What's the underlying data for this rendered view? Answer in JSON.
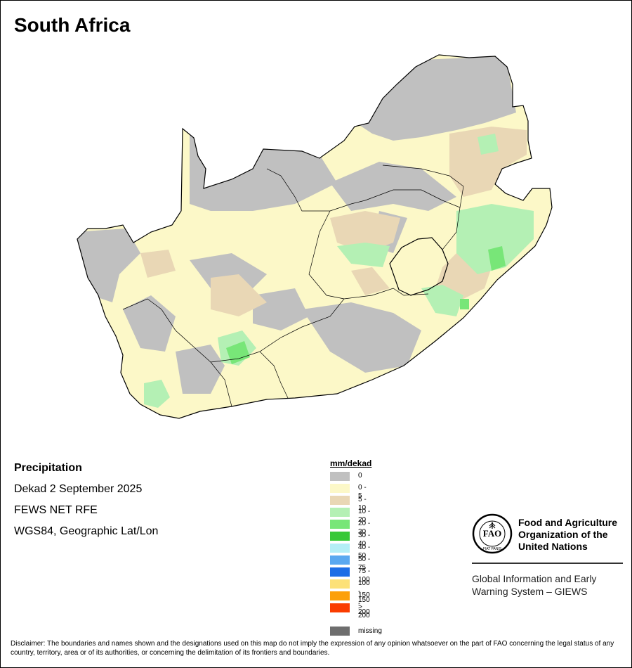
{
  "title": "South Africa",
  "info": {
    "variable": "Precipitation",
    "period": "Dekad 2 September 2025",
    "source": "FEWS NET RFE",
    "projection": "WGS84, Geographic Lat/Lon"
  },
  "legend": {
    "title": "mm/dekad",
    "items": [
      {
        "label": "0",
        "color": "#c0c0c0"
      },
      {
        "label": "0 - 5",
        "color": "#fcf8c8"
      },
      {
        "label": "5 - 10",
        "color": "#e9d7b5"
      },
      {
        "label": "10 - 20",
        "color": "#b4f0b4"
      },
      {
        "label": "20 - 30",
        "color": "#78e678"
      },
      {
        "label": "30 - 40",
        "color": "#38c838"
      },
      {
        "label": "40 - 50",
        "color": "#b4eef6"
      },
      {
        "label": "50 - 75",
        "color": "#5aa8f0"
      },
      {
        "label": "75 - 100",
        "color": "#1e6ee6"
      },
      {
        "label": "100 - 150",
        "color": "#fce178"
      },
      {
        "label": "150 - 200",
        "color": "#fca00a"
      },
      {
        "label": "> 200",
        "color": "#fa3c00"
      }
    ],
    "missing": {
      "label": "missing",
      "color": "#6e6e6e"
    }
  },
  "fao": {
    "line1": "Food and Agriculture",
    "line2": "Organization of the",
    "line3": "United Nations",
    "emblem_letters": "FAO",
    "emblem_motto": "FIAT PANIS"
  },
  "giews": {
    "line1": "Global Information and Early",
    "line2": "Warning System – GIEWS"
  },
  "disclaimer": "Disclaimer: The boundaries and names shown and the designations used on this map do not imply the expression of any opinion whatsoever on the part of FAO concerning the legal status of any country, territory, area or of its authorities, or concerning the delimitation of its frontiers and boundaries."
}
